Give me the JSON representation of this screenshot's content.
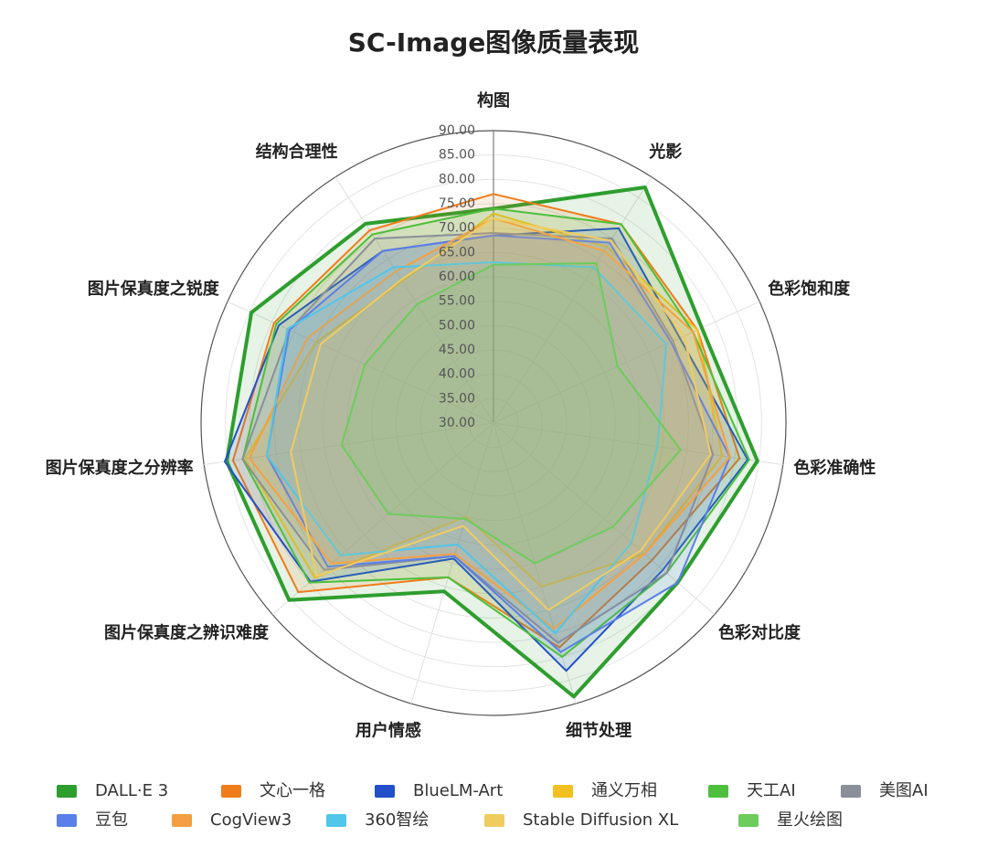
{
  "chart_data": {
    "type": "radar",
    "title": "SC-Image图像质量表现",
    "categories": [
      "构图",
      "光影",
      "色彩饱和度",
      "色彩准确性",
      "色彩对比度",
      "细节处理",
      "用户情感",
      "图片保真度之辨识难度",
      "图片保真度之分辨率",
      "图片保真度之锐度",
      "结构合理性"
    ],
    "ylim": [
      30,
      90
    ],
    "yticks": [
      {
        "value": 30,
        "label": "30.00"
      },
      {
        "value": 35,
        "label": "35.00"
      },
      {
        "value": 40,
        "label": "40.00"
      },
      {
        "value": 45,
        "label": "45.00"
      },
      {
        "value": 50,
        "label": "50.00"
      },
      {
        "value": 55,
        "label": "55.00"
      },
      {
        "value": 60,
        "label": "60.00"
      },
      {
        "value": 65,
        "label": "65.00"
      },
      {
        "value": 70,
        "label": "70.00"
      },
      {
        "value": 75,
        "label": "75.00"
      },
      {
        "value": 80,
        "label": "80.00"
      },
      {
        "value": 85,
        "label": "85.00"
      },
      {
        "value": 90,
        "label": "90.00"
      }
    ],
    "grid": true,
    "series": [
      {
        "name": "DALL·E 3",
        "color": "#2e9e2e",
        "values": [
          74,
          87.5,
          77,
          84.7,
          80,
          88.5,
          66,
          85.5,
          85.3,
          84.6,
          78.6
        ]
      },
      {
        "name": "文心一格",
        "color": "#f07c1a",
        "values": [
          77,
          78.5,
          76,
          81,
          73,
          78,
          63,
          83,
          84,
          79.5,
          77
        ]
      },
      {
        "name": "BlueLM-Art",
        "color": "#2350c8",
        "values": [
          68.5,
          77.5,
          72,
          82.7,
          76,
          83,
          59,
          79.7,
          85.7,
          78.4,
          72
        ]
      },
      {
        "name": "通义万相",
        "color": "#f2c020",
        "values": [
          73,
          73,
          76,
          77.4,
          71,
          65,
          50,
          78.5,
          81.5,
          70,
          64.6
        ]
      },
      {
        "name": "天工AI",
        "color": "#4cbf3c",
        "values": [
          74,
          78.5,
          75,
          83,
          77,
          80,
          63,
          80,
          82,
          79,
          76
        ]
      },
      {
        "name": "美图AI",
        "color": "#8a8f9a",
        "values": [
          69,
          75,
          70.5,
          75.5,
          77,
          77,
          58.5,
          76,
          82,
          76,
          75
        ]
      },
      {
        "name": "豆包",
        "color": "#5b7fe8",
        "values": [
          68.5,
          74,
          70,
          79,
          80,
          79,
          58.5,
          75,
          77,
          76,
          72
        ]
      },
      {
        "name": "CogView3",
        "color": "#f4a040",
        "values": [
          72,
          72,
          75,
          79,
          71,
          74,
          58,
          74,
          80.6,
          72,
          67
        ]
      },
      {
        "name": "360智绘",
        "color": "#4fc6ea",
        "values": [
          63,
          68,
          69,
          64,
          67.5,
          75,
          56,
          71.5,
          77,
          76.5,
          68
        ]
      },
      {
        "name": "Stable Diffusion XL",
        "color": "#f0cc60",
        "values": [
          72,
          74.5,
          73,
          75,
          70,
          70,
          52,
          78,
          72,
          69,
          65
        ]
      },
      {
        "name": "星火绘图",
        "color": "#6ccc5c",
        "values": [
          62.5,
          69,
          58,
          68.8,
          62.5,
          60,
          50.5,
          58.5,
          61.5,
          59,
          59
        ]
      }
    ]
  }
}
